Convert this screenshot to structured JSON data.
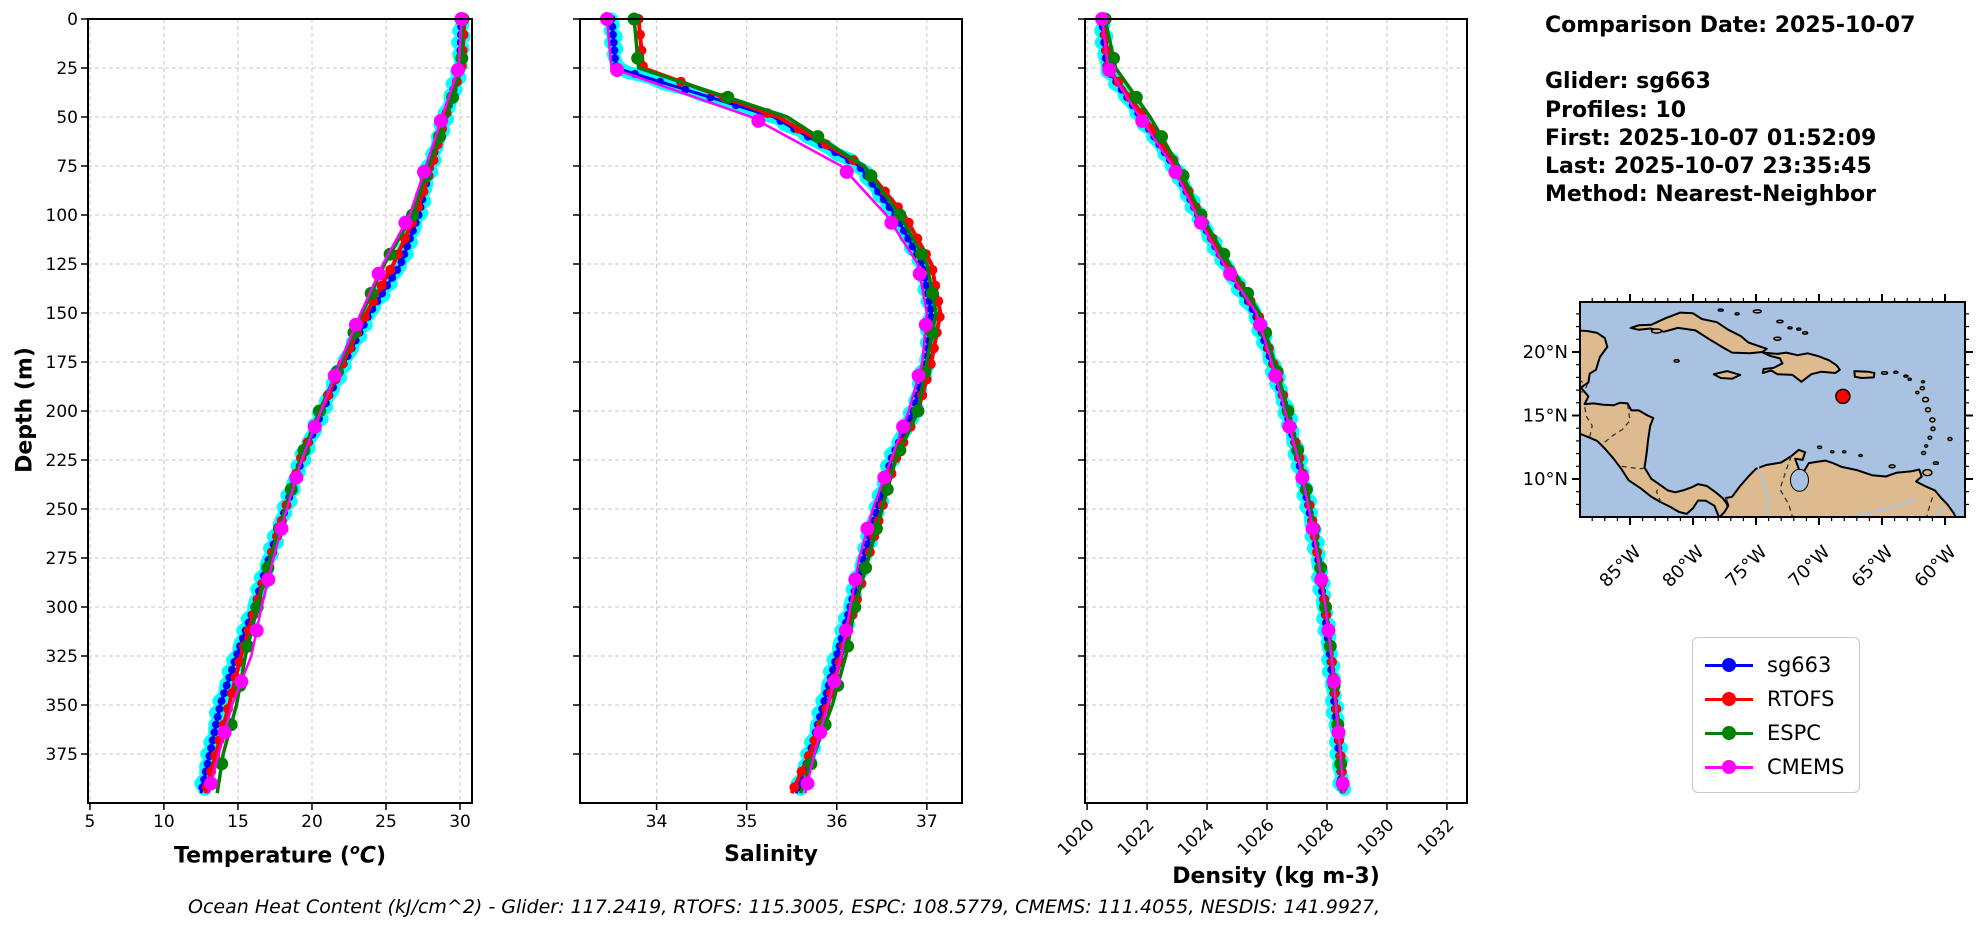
{
  "info_panel": {
    "comparison_date": "Comparison Date: 2025-10-07",
    "glider": "Glider: sg663",
    "profiles": "Profiles: 10",
    "first": "First: 2025-10-07 01:52:09",
    "last": "Last: 2025-10-07 23:35:45",
    "method": "Method: Nearest-Neighbor"
  },
  "footer": {
    "ohc_annotation": "Ocean Heat Content (kJ/cm^2) - Glider: 117.2419,  RTOFS: 115.3005,  ESPC: 108.5779,  CMEMS: 111.4055,  NESDIS: 141.9927,"
  },
  "axes": {
    "ylabel": "Depth (m)",
    "temp_label": {
      "pre": "Temperature (",
      "sup": "o",
      "unit": "C",
      "post": ")"
    },
    "sal_label": "Salinity",
    "dens_label": "Density (kg m-3)"
  },
  "legend": {
    "items": [
      {
        "label": "sg663",
        "color": "#0000ff"
      },
      {
        "label": "RTOFS",
        "color": "#ff0000"
      },
      {
        "label": "ESPC",
        "color": "#008000"
      },
      {
        "label": "CMEMS",
        "color": "#ff00ff"
      }
    ]
  },
  "map": {
    "lat_tick_labels": [
      "20°N",
      "15°N",
      "10°N"
    ],
    "lat_tick_values": [
      20,
      15,
      10
    ],
    "lon_tick_labels": [
      "85°W",
      "80°W",
      "75°W",
      "70°W",
      "65°W",
      "60°W"
    ],
    "lon_tick_values": [
      85,
      80,
      75,
      70,
      65,
      60
    ],
    "ocean_color": "#a9c2e2",
    "land_color": "#debb8e",
    "marker": {
      "color": "#ff0000",
      "lon_w": 68.1,
      "lat_n": 16.5
    }
  },
  "chart_data": [
    {
      "type": "line",
      "xlabel": "Temperature (°C)",
      "ylabel": "Depth (m)",
      "xlim": [
        4.87,
        30.81
      ],
      "ylim": [
        400,
        0
      ],
      "grid": true,
      "xticks": [
        5,
        10,
        15,
        20,
        25,
        30
      ],
      "yticks": [
        0,
        25,
        50,
        75,
        100,
        125,
        150,
        175,
        200,
        225,
        250,
        275,
        300,
        325,
        350,
        375
      ],
      "depths": [
        0,
        25,
        50,
        75,
        100,
        125,
        150,
        175,
        200,
        225,
        250,
        275,
        300,
        325,
        350,
        375,
        395
      ],
      "raw_profiles_color": "#00ffff",
      "series": [
        {
          "name": "sg663",
          "color": "#0000ff",
          "values": [
            30.1,
            30.0,
            29.0,
            28.0,
            27.2,
            26.0,
            23.9,
            22.2,
            20.7,
            19.3,
            18.2,
            17.1,
            16.1,
            14.9,
            13.8,
            13.1,
            12.5
          ]
        },
        {
          "name": "RTOFS",
          "color": "#ff0000",
          "values": [
            30.3,
            30.1,
            29.0,
            28.1,
            27.0,
            25.5,
            23.7,
            22.1,
            20.6,
            19.2,
            18.2,
            17.2,
            16.2,
            15.2,
            14.4,
            13.5,
            12.8
          ]
        },
        {
          "name": "ESPC",
          "color": "#008000",
          "values": [
            30.2,
            30.1,
            29.1,
            27.9,
            26.8,
            24.9,
            23.4,
            22.0,
            20.5,
            19.2,
            18.2,
            17.2,
            16.3,
            15.5,
            14.9,
            14.0,
            13.6
          ]
        },
        {
          "name": "CMEMS",
          "color": "#ff00ff",
          "values": [
            30.1,
            29.9,
            28.8,
            27.7,
            26.6,
            24.8,
            23.3,
            21.9,
            20.6,
            19.3,
            18.3,
            17.4,
            16.6,
            15.9,
            14.6,
            13.7,
            13.0
          ]
        }
      ]
    },
    {
      "type": "line",
      "xlabel": "Salinity",
      "ylabel": "Depth (m)",
      "xlim": [
        33.15,
        37.39
      ],
      "ylim": [
        400,
        0
      ],
      "grid": true,
      "xticks": [
        34,
        35,
        36,
        37
      ],
      "yticks": [
        0,
        25,
        50,
        75,
        100,
        125,
        150,
        175,
        200,
        225,
        250,
        275,
        300,
        325,
        350,
        375
      ],
      "depths": [
        0,
        25,
        50,
        75,
        100,
        125,
        150,
        175,
        200,
        225,
        250,
        275,
        300,
        325,
        350,
        375,
        395
      ],
      "raw_profiles_color": "#00ffff",
      "series": [
        {
          "name": "sg663",
          "color": "#0000ff",
          "values": [
            33.5,
            33.55,
            35.3,
            36.25,
            36.65,
            36.95,
            37.05,
            37.0,
            36.85,
            36.6,
            36.45,
            36.3,
            36.15,
            36.0,
            35.85,
            35.7,
            35.55
          ]
        },
        {
          "name": "RTOFS",
          "color": "#ff0000",
          "values": [
            33.8,
            33.85,
            35.35,
            36.3,
            36.75,
            37.05,
            37.15,
            37.05,
            36.9,
            36.65,
            36.5,
            36.35,
            36.2,
            36.05,
            35.9,
            35.7,
            35.5
          ]
        },
        {
          "name": "ESPC",
          "color": "#008000",
          "values": [
            33.75,
            33.8,
            35.45,
            36.3,
            36.7,
            37.0,
            37.1,
            37.0,
            36.9,
            36.65,
            36.5,
            36.35,
            36.2,
            36.1,
            35.95,
            35.75,
            35.6
          ]
        },
        {
          "name": "CMEMS",
          "color": "#ff00ff",
          "values": [
            33.45,
            33.5,
            35.05,
            36.05,
            36.55,
            36.9,
            37.0,
            36.95,
            36.8,
            36.6,
            36.4,
            36.25,
            36.15,
            36.05,
            35.9,
            35.75,
            35.65
          ]
        }
      ]
    },
    {
      "type": "line",
      "xlabel": "Density (kg m-3)",
      "ylabel": "Depth (m)",
      "xlim": [
        1019.93,
        1032.67
      ],
      "ylim": [
        400,
        0
      ],
      "grid": true,
      "xtick_rotation": 45,
      "xticks": [
        1020,
        1022,
        1024,
        1026,
        1028,
        1030,
        1032
      ],
      "yticks": [
        0,
        25,
        50,
        75,
        100,
        125,
        150,
        175,
        200,
        225,
        250,
        275,
        300,
        325,
        350,
        375
      ],
      "depths": [
        0,
        25,
        50,
        75,
        100,
        125,
        150,
        175,
        200,
        225,
        250,
        275,
        300,
        325,
        350,
        375,
        395
      ],
      "raw_profiles_color": "#00ffff",
      "series": [
        {
          "name": "sg663",
          "color": "#0000ff",
          "values": [
            1020.5,
            1020.65,
            1021.8,
            1022.9,
            1023.7,
            1024.6,
            1025.6,
            1026.15,
            1026.65,
            1027.05,
            1027.4,
            1027.7,
            1027.9,
            1028.1,
            1028.25,
            1028.4,
            1028.5
          ]
        },
        {
          "name": "RTOFS",
          "color": "#ff0000",
          "values": [
            1020.55,
            1020.7,
            1021.9,
            1023.0,
            1023.75,
            1024.65,
            1025.7,
            1026.2,
            1026.7,
            1027.1,
            1027.45,
            1027.7,
            1027.95,
            1028.15,
            1028.3,
            1028.45,
            1028.55
          ]
        },
        {
          "name": "ESPC",
          "color": "#008000",
          "values": [
            1020.6,
            1020.95,
            1022.1,
            1023.05,
            1023.8,
            1024.75,
            1025.75,
            1026.25,
            1026.7,
            1027.1,
            1027.45,
            1027.75,
            1027.95,
            1028.15,
            1028.3,
            1028.45,
            1028.5
          ]
        },
        {
          "name": "CMEMS",
          "color": "#ff00ff",
          "values": [
            1020.5,
            1020.7,
            1021.75,
            1022.85,
            1023.65,
            1024.55,
            1025.65,
            1026.15,
            1026.6,
            1027.05,
            1027.4,
            1027.7,
            1027.95,
            1028.15,
            1028.3,
            1028.45,
            1028.55
          ]
        }
      ]
    }
  ]
}
